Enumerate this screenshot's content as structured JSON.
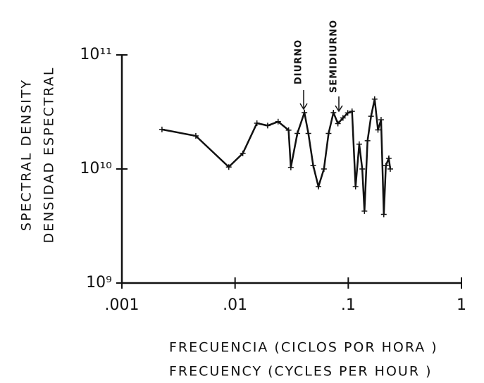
{
  "chart_data": {
    "type": "line",
    "xlabel": [
      "FRECUENCIA (CICLOS POR HORA )",
      "FRECUENCY (CYCLES PER HOUR )"
    ],
    "ylabel": [
      "SPECTRAL DENSITY",
      "DENSIDAD ESPECTRAL"
    ],
    "annotations": [
      "DIURNO",
      "SEMIDIURNO"
    ],
    "xscale": "log",
    "yscale": "log",
    "xlim": [
      0.001,
      1
    ],
    "ylim": [
      1000000000,
      100000000000
    ],
    "xticks": [
      {
        "value": 0.001,
        "label": ".001"
      },
      {
        "value": 0.01,
        "label": ".01"
      },
      {
        "value": 0.1,
        "label": ".1"
      },
      1
    ],
    "yticks": [
      {
        "value": 1000000000,
        "label": "10⁹"
      },
      {
        "value": 10000000000,
        "label": "10¹⁰"
      },
      {
        "value": 100000000000,
        "label": "10¹¹"
      }
    ],
    "color": "#111111",
    "x": [
      0.00226,
      0.0045,
      0.0088,
      0.0117,
      0.0156,
      0.0194,
      0.024,
      0.0297,
      0.0311,
      0.0355,
      0.041,
      0.0444,
      0.049,
      0.0545,
      0.061,
      0.067,
      0.074,
      0.081,
      0.0898,
      0.099,
      0.108,
      0.116,
      0.125,
      0.133,
      0.139,
      0.148,
      0.159,
      0.171,
      0.183,
      0.195,
      0.206,
      0.215,
      0.228,
      0.235
    ],
    "values": [
      22200000000,
      19500000000,
      10400000000,
      13700000000,
      25200000000,
      24000000000,
      26000000000,
      21900000000,
      10300000000,
      20500000000,
      31200000000,
      20500000000,
      10700000000,
      7000000000,
      10000000000,
      20500000000,
      31200000000,
      25000000000,
      28000000000,
      31000000000,
      32000000000,
      7000000000,
      16500000000,
      10000000000,
      4270000000,
      17700000000,
      29000000000,
      41000000000,
      22000000000,
      27000000000,
      4000000000,
      10700000000,
      12400000000,
      10000000000
    ]
  }
}
